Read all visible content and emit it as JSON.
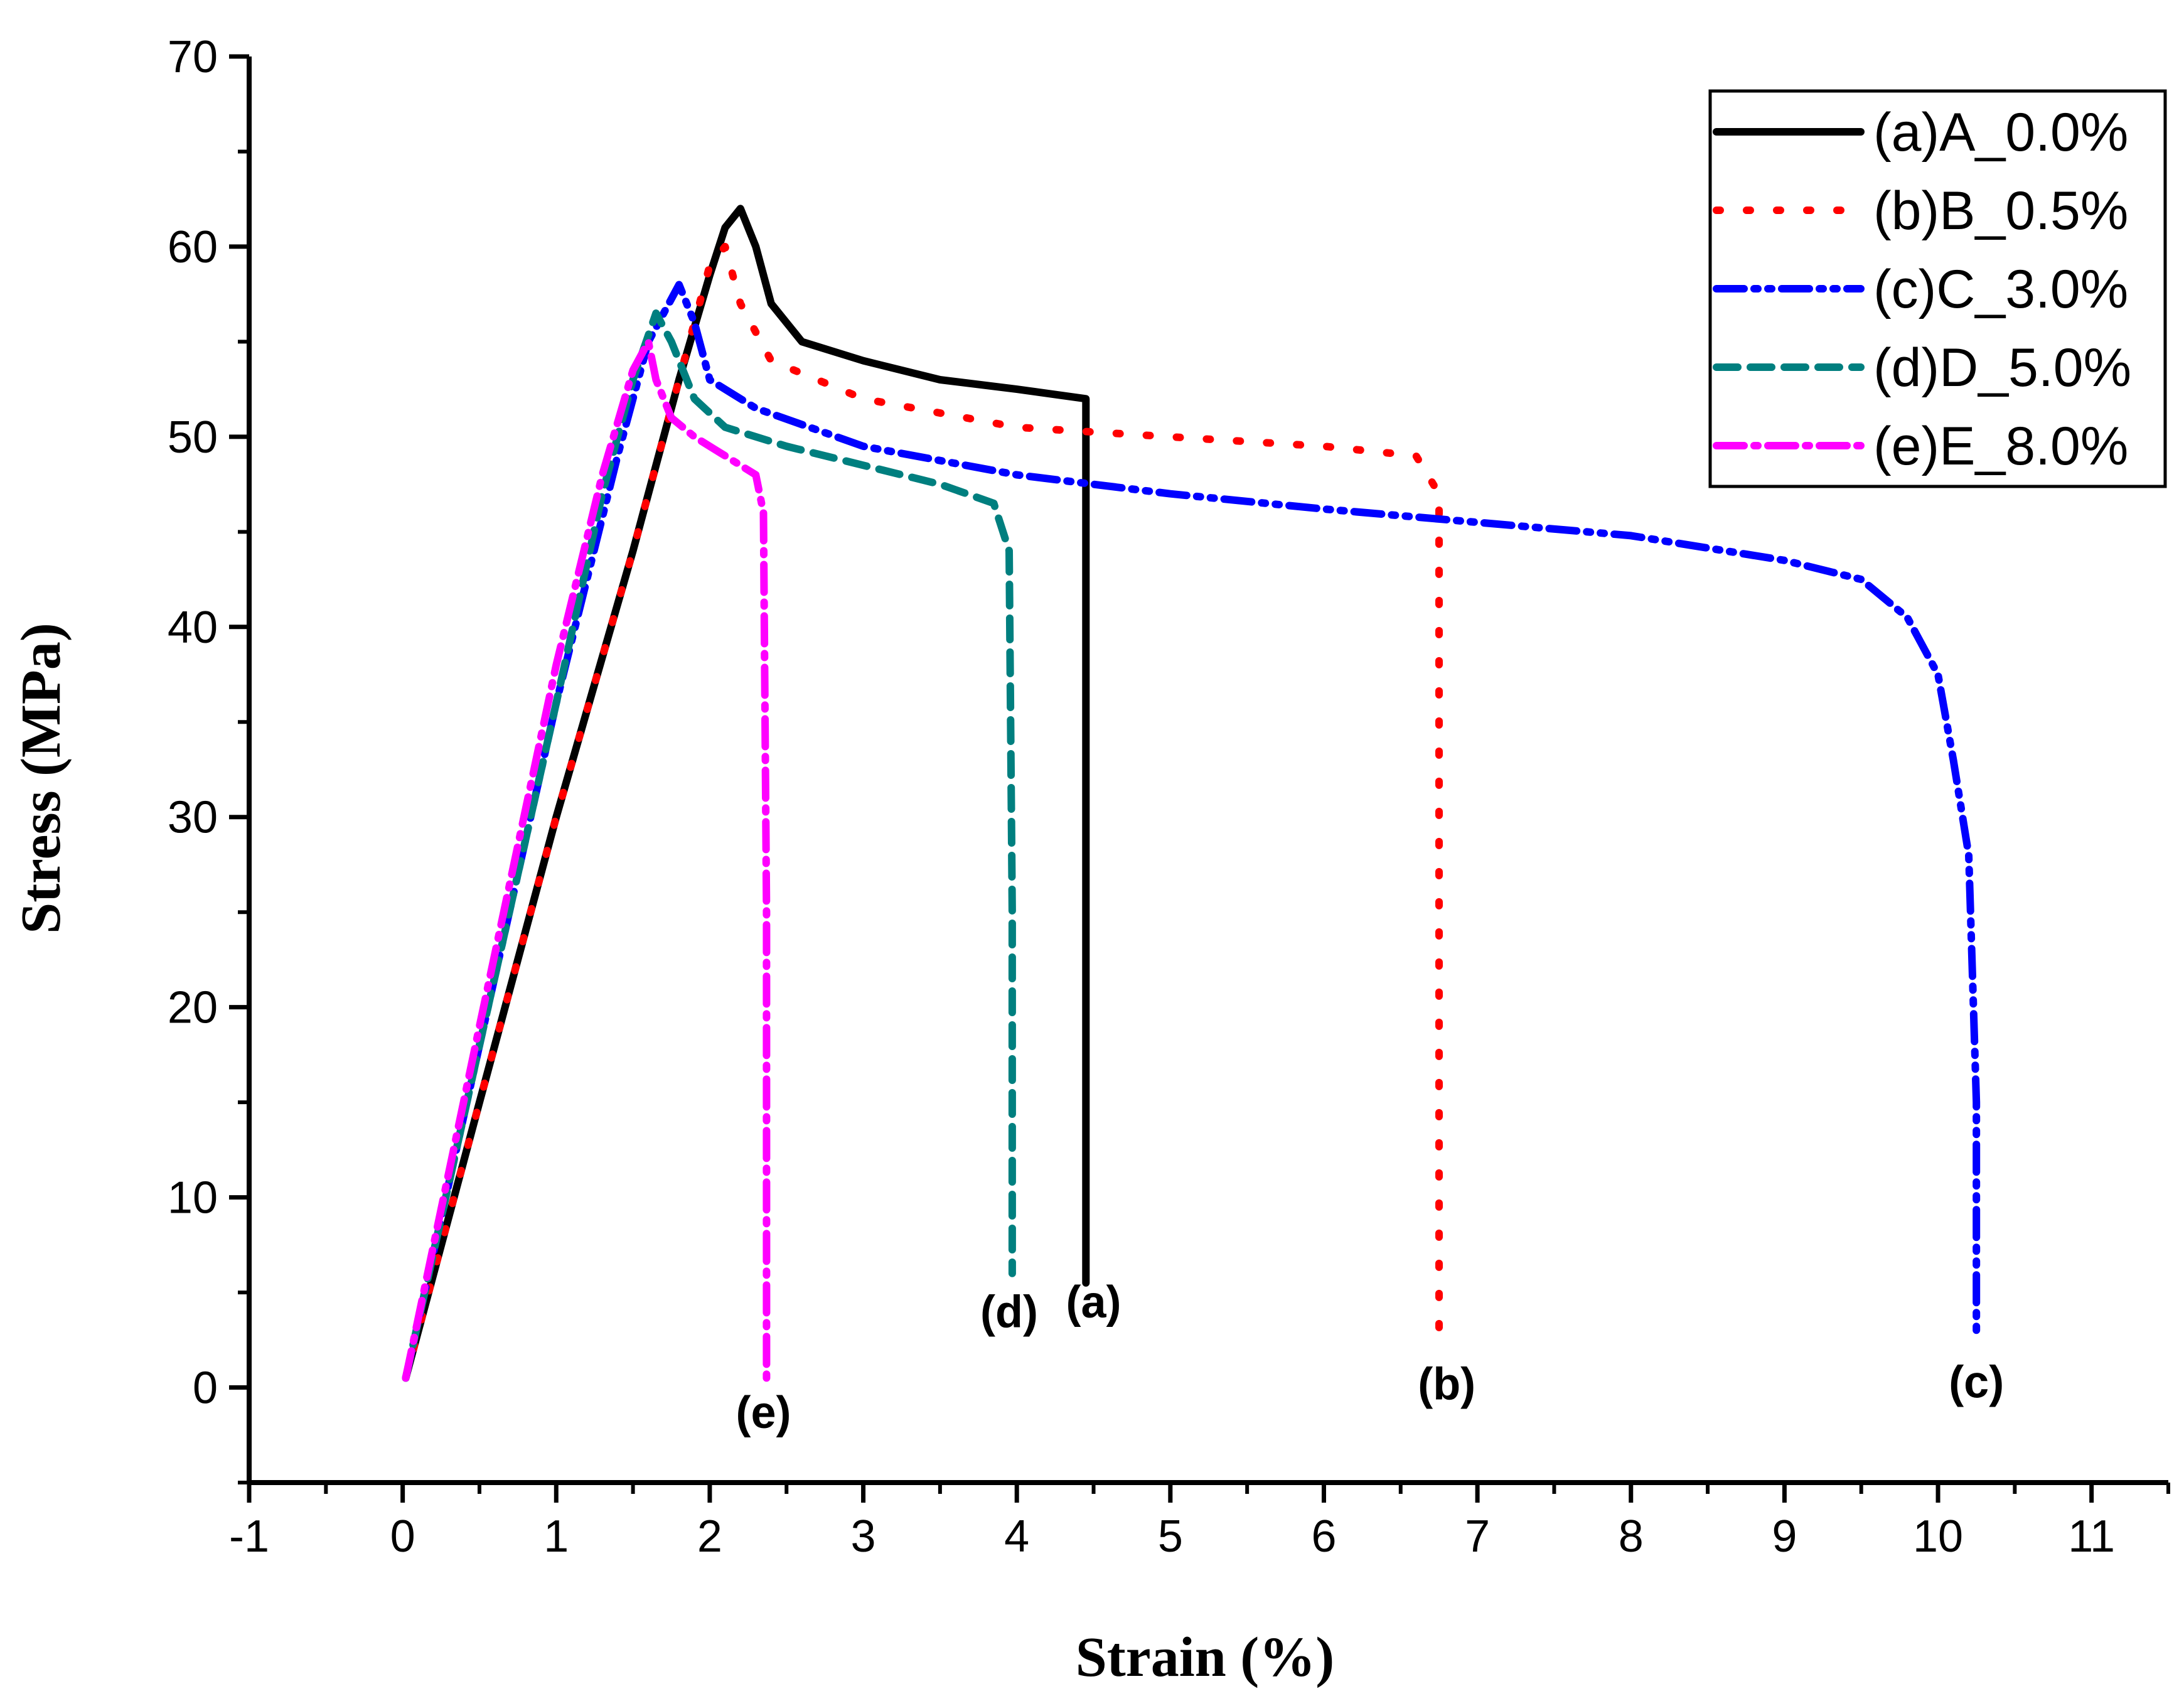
{
  "chart_data": {
    "type": "line",
    "title": "",
    "xlabel": "Strain (%)",
    "ylabel": "Stress (MPa)",
    "xlim": [
      -1,
      11.5
    ],
    "ylim": [
      -5,
      70
    ],
    "xticks": [
      -1,
      0,
      1,
      2,
      3,
      4,
      5,
      6,
      7,
      8,
      9,
      10,
      11
    ],
    "yticks": [
      0,
      10,
      20,
      30,
      40,
      50,
      60,
      70
    ],
    "xtick_labels": [
      "-1",
      "0",
      "1",
      "2",
      "3",
      "4",
      "5",
      "6",
      "7",
      "8",
      "9",
      "10",
      "11"
    ],
    "ytick_labels": [
      "0",
      "10",
      "20",
      "30",
      "40",
      "50",
      "60",
      "70"
    ],
    "legend_position": "top-right",
    "series": [
      {
        "name": "(a)A_0.0%",
        "color": "#000000",
        "style": "solid",
        "x": [
          0.02,
          0.5,
          1.0,
          1.5,
          1.8,
          2.0,
          2.1,
          2.2,
          2.3,
          2.4,
          2.6,
          3.0,
          3.5,
          4.0,
          4.45,
          4.45,
          4.45
        ],
        "y": [
          0.5,
          15,
          30,
          44,
          53,
          58.5,
          61,
          62,
          60,
          57,
          55,
          54,
          53,
          52.5,
          52,
          30,
          5.5
        ]
      },
      {
        "name": "(b)B_0.5%",
        "color": "#ff0000",
        "style": "dot",
        "x": [
          0.02,
          0.5,
          1.0,
          1.5,
          1.8,
          2.0,
          2.1,
          2.2,
          2.4,
          3.0,
          4.0,
          5.0,
          6.0,
          6.6,
          6.75,
          6.75,
          6.75
        ],
        "y": [
          0.5,
          15,
          30,
          44,
          53,
          59,
          60,
          57,
          54,
          52,
          50.5,
          50,
          49.5,
          49,
          47,
          25,
          2
        ]
      },
      {
        "name": "(c)C_3.0%",
        "color": "#0000ff",
        "style": "dash-dot-dot",
        "x": [
          0.02,
          0.5,
          1.0,
          1.4,
          1.6,
          1.8,
          1.9,
          2.0,
          2.3,
          3.0,
          4.0,
          5.0,
          6.0,
          7.0,
          8.0,
          9.0,
          9.5,
          9.8,
          10.0,
          10.1,
          10.2,
          10.25,
          10.25
        ],
        "y": [
          0.5,
          18,
          36,
          49,
          55,
          58,
          56,
          53,
          51.5,
          49.5,
          48,
          47,
          46.2,
          45.5,
          44.8,
          43.5,
          42.5,
          40.5,
          37.5,
          33,
          28,
          15,
          2.5
        ]
      },
      {
        "name": "(d)D_5.0%",
        "color": "#007f7f",
        "style": "dash",
        "x": [
          0.02,
          0.5,
          1.0,
          1.3,
          1.5,
          1.65,
          1.75,
          1.9,
          2.1,
          2.5,
          3.0,
          3.5,
          3.85,
          3.95,
          3.97,
          3.97
        ],
        "y": [
          0.5,
          18,
          36,
          47,
          53,
          56.5,
          55,
          52,
          50.5,
          49.5,
          48.5,
          47.5,
          46.5,
          44,
          25,
          6
        ]
      },
      {
        "name": "(e)E_8.0%",
        "color": "#ff00ff",
        "style": "dash-dot",
        "x": [
          0.02,
          0.5,
          1.0,
          1.3,
          1.5,
          1.6,
          1.65,
          1.75,
          1.9,
          2.1,
          2.3,
          2.35,
          2.37,
          2.37
        ],
        "y": [
          0.5,
          19,
          38,
          48,
          53.5,
          55,
          53,
          51,
          50,
          49,
          48,
          46,
          25,
          0
        ]
      }
    ],
    "annotations": [
      {
        "text": "(a)",
        "x": 4.5,
        "y": 4.5
      },
      {
        "text": "(b)",
        "x": 6.8,
        "y": 0.2
      },
      {
        "text": "(c)",
        "x": 10.25,
        "y": 0.3
      },
      {
        "text": "(d)",
        "x": 3.95,
        "y": 4
      },
      {
        "text": "(e)",
        "x": 2.35,
        "y": -1.3
      }
    ]
  }
}
